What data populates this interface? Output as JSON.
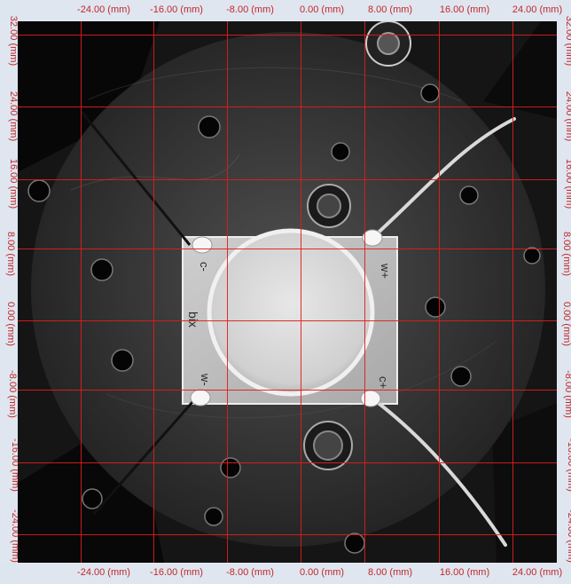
{
  "axis_labels": {
    "x": [
      "-24.00 (mm)",
      "-16.00 (mm)",
      "-8.00 (mm)",
      "0.00 (mm)",
      "8.00 (mm)",
      "16.00 (mm)",
      "24.00 (mm)"
    ],
    "y": [
      "32.00 (mm)",
      "24.00 (mm)",
      "16.00 (mm)",
      "8.00 (mm)",
      "0.00 (mm)",
      "-8.00 (mm)",
      "-16.00 (mm)",
      "-24.00 (mm)"
    ]
  },
  "pcb_markings": {
    "c_minus": "c-",
    "w_plus": "w+",
    "w_minus": "w-",
    "c_plus": "c+",
    "brand": "bix"
  },
  "colors": {
    "grid": "#e01c1c",
    "label": "#c1272d",
    "background": "#dfe6ef"
  }
}
